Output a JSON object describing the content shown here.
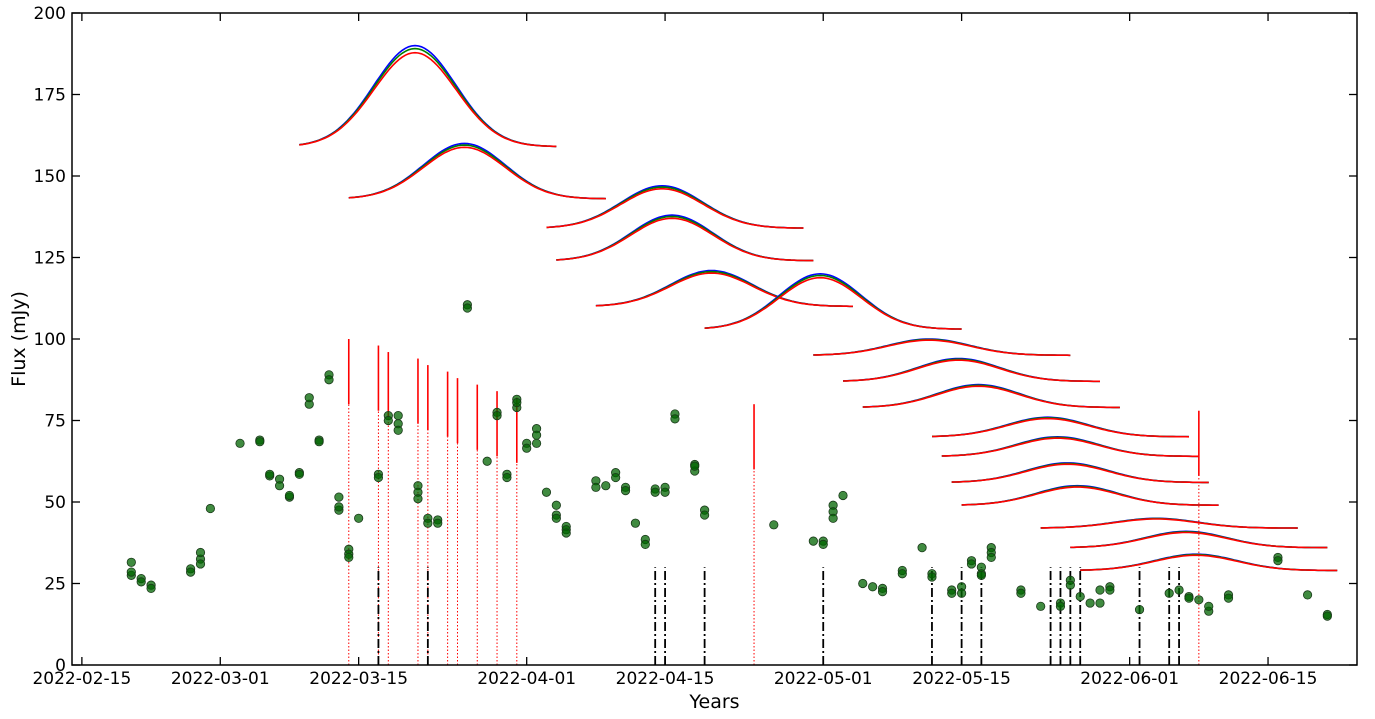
{
  "chart_data": {
    "type": "scatter",
    "title": "",
    "xlabel": "Years",
    "ylabel": "Flux (mJy)",
    "ylim": [
      0,
      200
    ],
    "xlim": [
      "2022-02-14",
      "2022-06-24"
    ],
    "y_ticks": [
      0,
      25,
      50,
      75,
      100,
      125,
      150,
      175,
      200
    ],
    "x_ticks": [
      "2022-02-15",
      "2022-03-01",
      "2022-03-15",
      "2022-04-01",
      "2022-04-15",
      "2022-05-01",
      "2022-05-15",
      "2022-06-01",
      "2022-06-15"
    ],
    "grid": false,
    "colors": {
      "points": "#006400",
      "red_markers": "#ff0000",
      "black_markers": "#000000",
      "profile_blue": "#0000ff",
      "profile_green": "#008000",
      "profile_red": "#ff0000"
    },
    "series": [
      {
        "values": [
          [
            "2022-02-20",
            31.5
          ],
          [
            "2022-02-20",
            27.5
          ],
          [
            "2022-02-20",
            28.5
          ],
          [
            "2022-02-21",
            26.5
          ],
          [
            "2022-02-21",
            25.5
          ],
          [
            "2022-02-22",
            24.5
          ],
          [
            "2022-02-22",
            23.5
          ],
          [
            "2022-02-26",
            29.5
          ],
          [
            "2022-02-26",
            28.5
          ],
          [
            "2022-02-27",
            32.5
          ],
          [
            "2022-02-27",
            34.5
          ],
          [
            "2022-02-27",
            31.0
          ],
          [
            "2022-02-28",
            48.0
          ],
          [
            "2022-03-03",
            68.0
          ],
          [
            "2022-03-05",
            69.0
          ],
          [
            "2022-03-05",
            68.5
          ],
          [
            "2022-03-06",
            58.0
          ],
          [
            "2022-03-06",
            58.5
          ],
          [
            "2022-03-07",
            57.0
          ],
          [
            "2022-03-07",
            55.0
          ],
          [
            "2022-03-08",
            51.5
          ],
          [
            "2022-03-08",
            52.0
          ],
          [
            "2022-03-09",
            59.0
          ],
          [
            "2022-03-09",
            58.5
          ],
          [
            "2022-03-10",
            80.0
          ],
          [
            "2022-03-10",
            82.0
          ],
          [
            "2022-03-11",
            69.0
          ],
          [
            "2022-03-11",
            68.5
          ],
          [
            "2022-03-12",
            89.0
          ],
          [
            "2022-03-12",
            87.5
          ],
          [
            "2022-03-13",
            51.5
          ],
          [
            "2022-03-13",
            47.5
          ],
          [
            "2022-03-13",
            48.5
          ],
          [
            "2022-03-14",
            35.5
          ],
          [
            "2022-03-14",
            34.0
          ],
          [
            "2022-03-14",
            33.0
          ],
          [
            "2022-03-15",
            45.0
          ],
          [
            "2022-03-17",
            58.5
          ],
          [
            "2022-03-17",
            57.5
          ],
          [
            "2022-03-18",
            76.5
          ],
          [
            "2022-03-18",
            75.0
          ],
          [
            "2022-03-19",
            76.5
          ],
          [
            "2022-03-19",
            74.0
          ],
          [
            "2022-03-19",
            72.0
          ],
          [
            "2022-03-21",
            55.0
          ],
          [
            "2022-03-21",
            53.0
          ],
          [
            "2022-03-21",
            51.0
          ],
          [
            "2022-03-22",
            45.0
          ],
          [
            "2022-03-22",
            43.5
          ],
          [
            "2022-03-23",
            44.5
          ],
          [
            "2022-03-23",
            43.5
          ],
          [
            "2022-03-26",
            110.5
          ],
          [
            "2022-03-26",
            109.5
          ],
          [
            "2022-03-28",
            62.5
          ],
          [
            "2022-03-29",
            77.5
          ],
          [
            "2022-03-29",
            76.5
          ],
          [
            "2022-03-30",
            58.5
          ],
          [
            "2022-03-30",
            57.5
          ],
          [
            "2022-03-31",
            81.5
          ],
          [
            "2022-03-31",
            79.0
          ],
          [
            "2022-03-31",
            80.5
          ],
          [
            "2022-04-01",
            68.0
          ],
          [
            "2022-04-01",
            66.5
          ],
          [
            "2022-04-02",
            72.5
          ],
          [
            "2022-04-02",
            68.0
          ],
          [
            "2022-04-02",
            70.5
          ],
          [
            "2022-04-03",
            53.0
          ],
          [
            "2022-04-04",
            49.0
          ],
          [
            "2022-04-04",
            46.0
          ],
          [
            "2022-04-04",
            45.0
          ],
          [
            "2022-04-05",
            42.5
          ],
          [
            "2022-04-05",
            41.5
          ],
          [
            "2022-04-05",
            40.5
          ],
          [
            "2022-04-08",
            56.5
          ],
          [
            "2022-04-08",
            54.5
          ],
          [
            "2022-04-09",
            55.0
          ],
          [
            "2022-04-10",
            59.0
          ],
          [
            "2022-04-10",
            57.5
          ],
          [
            "2022-04-11",
            54.5
          ],
          [
            "2022-04-11",
            53.5
          ],
          [
            "2022-04-12",
            43.5
          ],
          [
            "2022-04-13",
            38.5
          ],
          [
            "2022-04-13",
            37.0
          ],
          [
            "2022-04-14",
            54.0
          ],
          [
            "2022-04-14",
            53.0
          ],
          [
            "2022-04-15",
            54.5
          ],
          [
            "2022-04-15",
            53.0
          ],
          [
            "2022-04-16",
            77.0
          ],
          [
            "2022-04-16",
            75.5
          ],
          [
            "2022-04-18",
            61.5
          ],
          [
            "2022-04-18",
            59.5
          ],
          [
            "2022-04-18",
            61.0
          ],
          [
            "2022-04-19",
            47.5
          ],
          [
            "2022-04-19",
            46.0
          ],
          [
            "2022-04-26",
            43.0
          ],
          [
            "2022-04-30",
            38.0
          ],
          [
            "2022-05-01",
            38.0
          ],
          [
            "2022-05-01",
            37.0
          ],
          [
            "2022-05-02",
            49.0
          ],
          [
            "2022-05-02",
            47.0
          ],
          [
            "2022-05-02",
            45.0
          ],
          [
            "2022-05-03",
            52.0
          ],
          [
            "2022-05-05",
            25.0
          ],
          [
            "2022-05-06",
            24.0
          ],
          [
            "2022-05-07",
            23.5
          ],
          [
            "2022-05-07",
            22.5
          ],
          [
            "2022-05-09",
            29.0
          ],
          [
            "2022-05-09",
            28.0
          ],
          [
            "2022-05-11",
            36.0
          ],
          [
            "2022-05-12",
            28.0
          ],
          [
            "2022-05-12",
            27.0
          ],
          [
            "2022-05-14",
            23.0
          ],
          [
            "2022-05-14",
            22.0
          ],
          [
            "2022-05-15",
            24.0
          ],
          [
            "2022-05-15",
            22.0
          ],
          [
            "2022-05-16",
            32.0
          ],
          [
            "2022-05-16",
            31.0
          ],
          [
            "2022-05-17",
            30.0
          ],
          [
            "2022-05-17",
            28.0
          ],
          [
            "2022-05-17",
            27.5
          ],
          [
            "2022-05-18",
            36.0
          ],
          [
            "2022-05-18",
            34.5
          ],
          [
            "2022-05-18",
            33.0
          ],
          [
            "2022-05-21",
            23.0
          ],
          [
            "2022-05-21",
            22.0
          ],
          [
            "2022-05-23",
            18.0
          ],
          [
            "2022-05-25",
            19.0
          ],
          [
            "2022-05-25",
            18.0
          ],
          [
            "2022-05-26",
            26.0
          ],
          [
            "2022-05-26",
            24.5
          ],
          [
            "2022-05-27",
            21.0
          ],
          [
            "2022-05-28",
            19.0
          ],
          [
            "2022-05-29",
            19.0
          ],
          [
            "2022-05-29",
            23.0
          ],
          [
            "2022-05-30",
            24.0
          ],
          [
            "2022-05-30",
            23.0
          ],
          [
            "2022-06-02",
            17.0
          ],
          [
            "2022-06-05",
            22.0
          ],
          [
            "2022-06-06",
            23.0
          ],
          [
            "2022-06-07",
            21.0
          ],
          [
            "2022-06-07",
            20.5
          ],
          [
            "2022-06-08",
            20.0
          ],
          [
            "2022-06-09",
            16.5
          ],
          [
            "2022-06-09",
            18.0
          ],
          [
            "2022-06-11",
            21.5
          ],
          [
            "2022-06-11",
            20.5
          ],
          [
            "2022-06-16",
            33.0
          ],
          [
            "2022-06-16",
            32.0
          ],
          [
            "2022-06-19",
            21.5
          ],
          [
            "2022-06-21",
            15.5
          ],
          [
            "2022-06-21",
            15.0
          ]
        ]
      }
    ],
    "red_markers": [
      {
        "date": "2022-03-14",
        "y_solid": [
          80,
          100
        ],
        "y_dotted": [
          0,
          80
        ]
      },
      {
        "date": "2022-03-17",
        "y_solid": [
          78,
          98
        ],
        "y_dotted": [
          0,
          78
        ]
      },
      {
        "date": "2022-03-18",
        "y_solid": [
          76,
          96
        ],
        "y_dotted": [
          0,
          76
        ]
      },
      {
        "date": "2022-03-21",
        "y_solid": [
          74,
          94
        ],
        "y_dotted": [
          0,
          74
        ]
      },
      {
        "date": "2022-03-22",
        "y_solid": [
          72,
          92
        ],
        "y_dotted": [
          0,
          72
        ]
      },
      {
        "date": "2022-03-24",
        "y_solid": [
          70,
          90
        ],
        "y_dotted": [
          0,
          70
        ]
      },
      {
        "date": "2022-03-25",
        "y_solid": [
          68,
          88
        ],
        "y_dotted": [
          0,
          68
        ]
      },
      {
        "date": "2022-03-27",
        "y_solid": [
          66,
          86
        ],
        "y_dotted": [
          0,
          66
        ]
      },
      {
        "date": "2022-03-29",
        "y_solid": [
          64,
          84
        ],
        "y_dotted": [
          0,
          64
        ]
      },
      {
        "date": "2022-03-31",
        "y_solid": [
          62,
          82
        ],
        "y_dotted": [
          0,
          62
        ]
      },
      {
        "date": "2022-04-24",
        "y_solid": [
          60,
          80
        ],
        "y_dotted": [
          0,
          60
        ]
      },
      {
        "date": "2022-06-08",
        "y_solid": [
          58,
          78
        ],
        "y_dotted": [
          0,
          58
        ]
      }
    ],
    "black_markers": [
      {
        "date": "2022-03-17",
        "y": [
          0,
          30
        ]
      },
      {
        "date": "2022-03-22",
        "y": [
          0,
          30
        ]
      },
      {
        "date": "2022-04-14",
        "y": [
          0,
          30
        ]
      },
      {
        "date": "2022-04-15",
        "y": [
          0,
          30
        ]
      },
      {
        "date": "2022-04-19",
        "y": [
          0,
          30
        ]
      },
      {
        "date": "2022-05-01",
        "y": [
          0,
          30
        ]
      },
      {
        "date": "2022-05-12",
        "y": [
          0,
          30
        ]
      },
      {
        "date": "2022-05-15",
        "y": [
          0,
          30
        ]
      },
      {
        "date": "2022-05-17",
        "y": [
          0,
          30
        ]
      },
      {
        "date": "2022-05-24",
        "y": [
          0,
          30
        ]
      },
      {
        "date": "2022-05-25",
        "y": [
          0,
          30
        ]
      },
      {
        "date": "2022-05-26",
        "y": [
          0,
          30
        ]
      },
      {
        "date": "2022-05-27",
        "y": [
          0,
          30
        ]
      },
      {
        "date": "2022-06-02",
        "y": [
          0,
          30
        ]
      },
      {
        "date": "2022-06-05",
        "y": [
          0,
          30
        ]
      },
      {
        "date": "2022-06-06",
        "y": [
          0,
          30
        ]
      }
    ],
    "profiles": [
      {
        "x_start": "2022-03-09",
        "x_end": "2022-04-04",
        "base": 159,
        "peak": 190
      },
      {
        "x_start": "2022-03-14",
        "x_end": "2022-04-09",
        "base": 143,
        "peak": 160
      },
      {
        "x_start": "2022-04-03",
        "x_end": "2022-04-29",
        "base": 134,
        "peak": 147
      },
      {
        "x_start": "2022-04-04",
        "x_end": "2022-04-30",
        "base": 124,
        "peak": 138
      },
      {
        "x_start": "2022-04-08",
        "x_end": "2022-05-04",
        "base": 110,
        "peak": 121
      },
      {
        "x_start": "2022-04-19",
        "x_end": "2022-05-15",
        "base": 103,
        "peak": 120
      },
      {
        "x_start": "2022-04-30",
        "x_end": "2022-05-26",
        "base": 95,
        "peak": 100
      },
      {
        "x_start": "2022-05-03",
        "x_end": "2022-05-29",
        "base": 87,
        "peak": 94
      },
      {
        "x_start": "2022-05-05",
        "x_end": "2022-05-31",
        "base": 79,
        "peak": 86
      },
      {
        "x_start": "2022-05-12",
        "x_end": "2022-06-07",
        "base": 70,
        "peak": 76
      },
      {
        "x_start": "2022-05-13",
        "x_end": "2022-06-08",
        "base": 64,
        "peak": 70
      },
      {
        "x_start": "2022-05-14",
        "x_end": "2022-06-09",
        "base": 56,
        "peak": 62
      },
      {
        "x_start": "2022-05-15",
        "x_end": "2022-06-10",
        "base": 49,
        "peak": 55
      },
      {
        "x_start": "2022-05-23",
        "x_end": "2022-06-18",
        "base": 42,
        "peak": 45
      },
      {
        "x_start": "2022-05-26",
        "x_end": "2022-06-21",
        "base": 36,
        "peak": 41
      },
      {
        "x_start": "2022-05-27",
        "x_end": "2022-06-22",
        "base": 29,
        "peak": 34
      }
    ]
  }
}
